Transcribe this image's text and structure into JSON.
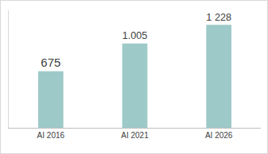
{
  "chart_data": {
    "type": "bar",
    "categories": [
      "AI 2016",
      "AI 2021",
      "AI 2026"
    ],
    "values": [
      675,
      1005,
      1228
    ],
    "value_labels": [
      "675",
      "1.005",
      "1 228"
    ],
    "color": "#9ec9c9",
    "ylim": [
      0,
      1400
    ],
    "grid": false,
    "data_labels": true,
    "tick_labels": "x"
  }
}
